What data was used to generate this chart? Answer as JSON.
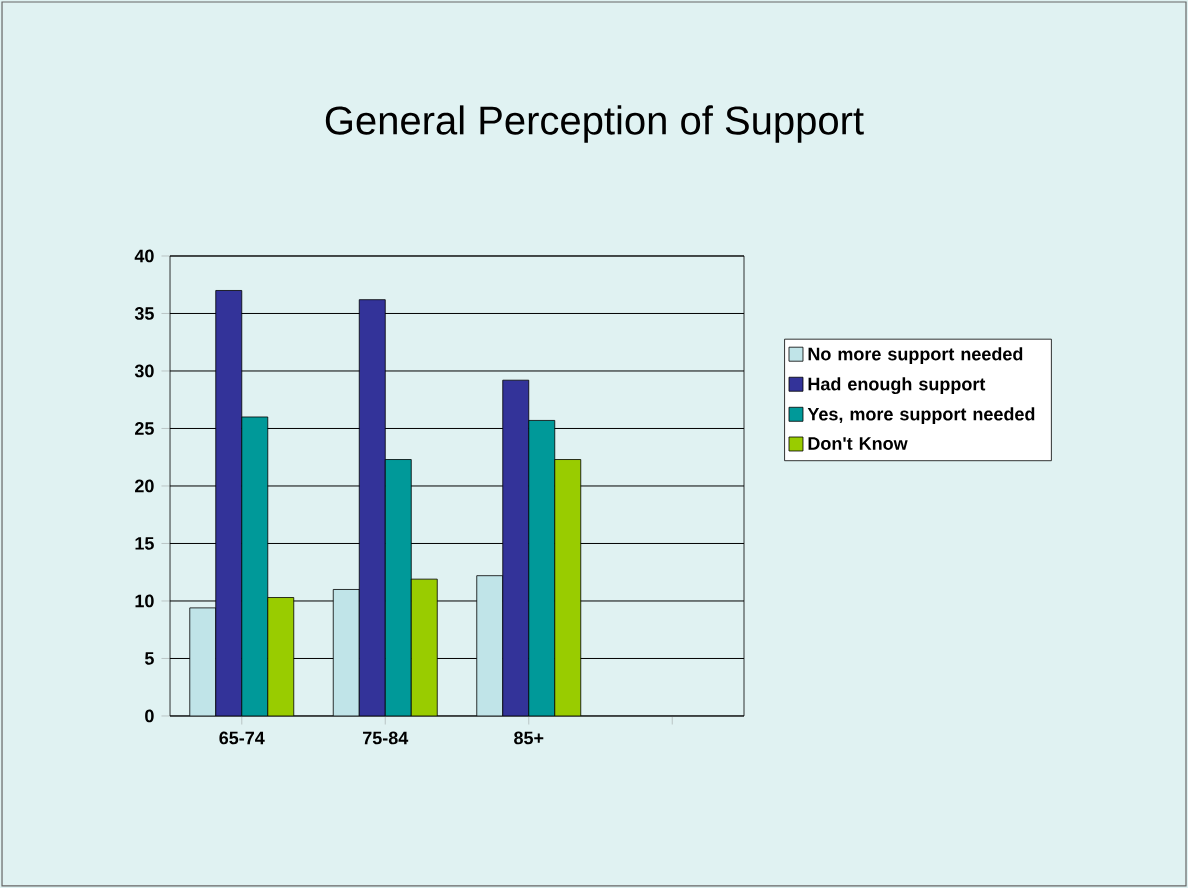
{
  "chart_data": {
    "type": "bar",
    "title": "General Perception of Support",
    "categories": [
      "65-74",
      "75-84",
      "85+",
      null
    ],
    "series": [
      {
        "name": "No more support needed",
        "color": "#c0e4e8",
        "values": [
          9.4,
          11,
          12.2,
          null
        ]
      },
      {
        "name": "Had enough support",
        "color": "#333399",
        "values": [
          37,
          36.2,
          29.2,
          null
        ]
      },
      {
        "name": "Yes, more support needed",
        "color": "#009999",
        "values": [
          26,
          22.3,
          25.7,
          null
        ]
      },
      {
        "name": "Don't Know",
        "color": "#99cc00",
        "values": [
          10.3,
          11.9,
          22.3,
          null
        ]
      }
    ],
    "ylim": [
      0,
      40
    ],
    "yticks": [
      0,
      5,
      10,
      15,
      20,
      25,
      30,
      35,
      40
    ],
    "grid": "y",
    "legend": "right"
  }
}
